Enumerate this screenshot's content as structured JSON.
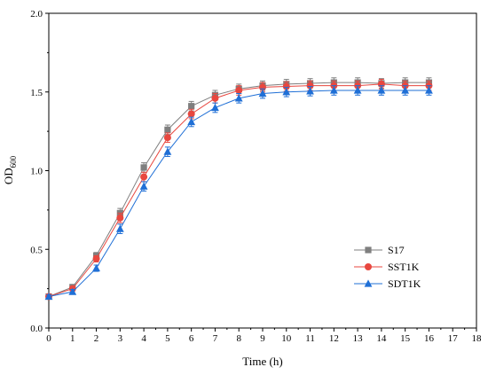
{
  "chart_data": {
    "type": "line",
    "xlabel": "Time (h)",
    "ylabel": {
      "base": "OD",
      "sub": "600"
    },
    "xlim": [
      0,
      18
    ],
    "ylim": [
      0,
      2.0
    ],
    "xticks": [
      "0",
      "1",
      "2",
      "3",
      "4",
      "5",
      "6",
      "7",
      "8",
      "9",
      "10",
      "11",
      "12",
      "13",
      "14",
      "15",
      "16",
      "17",
      "18"
    ],
    "yticks": [
      "0.0",
      "0.5",
      "1.0",
      "1.5",
      "2.0"
    ],
    "grid": false,
    "legend_position": "right",
    "error_bars": true,
    "x": [
      0,
      1,
      2,
      3,
      4,
      5,
      6,
      7,
      8,
      9,
      10,
      11,
      12,
      13,
      14,
      15,
      16
    ],
    "series": [
      {
        "name": "S17",
        "marker": "square",
        "color": "#7f7f7f",
        "values": [
          0.2,
          0.26,
          0.46,
          0.73,
          1.02,
          1.26,
          1.41,
          1.48,
          1.52,
          1.54,
          1.55,
          1.555,
          1.56,
          1.56,
          1.555,
          1.56,
          1.56
        ],
        "errors": [
          0.01,
          0.015,
          0.02,
          0.03,
          0.03,
          0.03,
          0.03,
          0.03,
          0.03,
          0.03,
          0.03,
          0.03,
          0.03,
          0.03,
          0.03,
          0.03,
          0.03
        ]
      },
      {
        "name": "SST1K",
        "marker": "circle",
        "color": "#e8473f",
        "values": [
          0.2,
          0.25,
          0.44,
          0.7,
          0.96,
          1.21,
          1.36,
          1.46,
          1.51,
          1.53,
          1.535,
          1.54,
          1.54,
          1.54,
          1.55,
          1.54,
          1.54
        ],
        "errors": [
          0.01,
          0.015,
          0.02,
          0.03,
          0.03,
          0.03,
          0.03,
          0.03,
          0.03,
          0.03,
          0.03,
          0.03,
          0.03,
          0.03,
          0.03,
          0.03,
          0.03
        ]
      },
      {
        "name": "SDT1K",
        "marker": "triangle",
        "color": "#1f6fd6",
        "values": [
          0.2,
          0.23,
          0.38,
          0.63,
          0.9,
          1.12,
          1.31,
          1.4,
          1.46,
          1.49,
          1.5,
          1.505,
          1.51,
          1.51,
          1.51,
          1.51,
          1.51
        ],
        "errors": [
          0.01,
          0.015,
          0.02,
          0.03,
          0.03,
          0.03,
          0.03,
          0.03,
          0.03,
          0.03,
          0.03,
          0.03,
          0.03,
          0.03,
          0.03,
          0.03,
          0.03
        ]
      }
    ]
  }
}
